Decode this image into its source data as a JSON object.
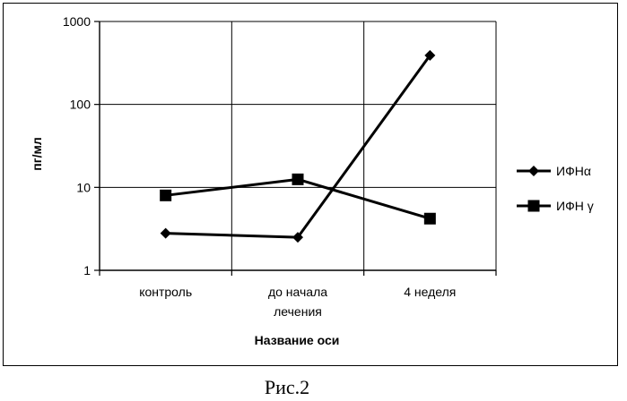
{
  "chart_data": {
    "type": "line",
    "y_scale": "log",
    "ylim": [
      1,
      1000
    ],
    "y_ticks": [
      "1",
      "10",
      "100",
      "1000"
    ],
    "categories": [
      [
        "контроль"
      ],
      [
        "до начала",
        "лечения"
      ],
      [
        "4 неделя"
      ]
    ],
    "series": [
      {
        "name": "ИФНα",
        "marker": "diamond",
        "values": [
          2.8,
          2.5,
          390
        ]
      },
      {
        "name": "ИФН γ",
        "marker": "square",
        "values": [
          8,
          12.5,
          4.2
        ]
      }
    ],
    "xlabel": "Название оси",
    "ylabel": "пг/мл",
    "legend_position": "right",
    "grid": true
  },
  "caption": "Рис.2"
}
